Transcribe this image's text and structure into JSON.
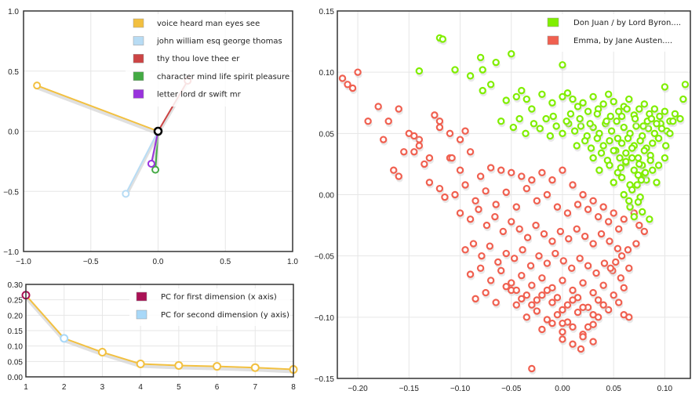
{
  "chart_data": [
    {
      "type": "line",
      "xlim": [
        -1.0,
        1.0
      ],
      "ylim": [
        -1.0,
        1.0
      ],
      "xticks": [
        "−1.0",
        "−0.5",
        "0.0",
        "0.5",
        "1.0"
      ],
      "yticks": [
        "1.0",
        "0.5",
        "0.0",
        "−0.5",
        "−1.0"
      ],
      "grid": true,
      "legend_position": "top-right",
      "series": [
        {
          "name": "voice heard man eyes see",
          "color": "#f2c040",
          "x": [
            0,
            -0.9
          ],
          "y": [
            0,
            0.38
          ]
        },
        {
          "name": "john william esq george thomas",
          "color": "#b8dcf4",
          "x": [
            0,
            -0.24
          ],
          "y": [
            0,
            -0.52
          ]
        },
        {
          "name": "thy thou love thee er",
          "color": "#cc4444",
          "x": [
            0,
            0.22
          ],
          "y": [
            0,
            0.42
          ]
        },
        {
          "name": "character mind life spirit pleasure",
          "color": "#44aa44",
          "x": [
            0,
            -0.02
          ],
          "y": [
            0,
            -0.32
          ]
        },
        {
          "name": "letter lord dr swift mr",
          "color": "#9933dd",
          "x": [
            0,
            -0.05
          ],
          "y": [
            0,
            -0.27
          ]
        }
      ]
    },
    {
      "type": "line",
      "x": [
        1,
        2,
        3,
        4,
        5,
        6,
        7,
        8
      ],
      "xlim": [
        1,
        8
      ],
      "ylim": [
        0,
        0.3
      ],
      "xticks": [
        "1",
        "2",
        "3",
        "4",
        "5",
        "6",
        "7",
        "8"
      ],
      "yticks": [
        "0.30",
        "0.25",
        "0.20",
        "0.15",
        "0.10",
        "0.05",
        "0.00"
      ],
      "grid": true,
      "legend_position": "top-right",
      "values": [
        0.265,
        0.125,
        0.08,
        0.042,
        0.037,
        0.034,
        0.03,
        0.024
      ],
      "line_color": "#f2c040",
      "highlights": [
        {
          "name": "PC for first dimension (x axis)",
          "index": 0,
          "color": "#aa1155"
        },
        {
          "name": "PC for second dimension (y axis)",
          "index": 1,
          "color": "#a8d8f8"
        }
      ]
    },
    {
      "type": "scatter",
      "xlim": [
        -0.22,
        0.125
      ],
      "ylim": [
        -0.15,
        0.15
      ],
      "xticks": [
        -0.2,
        -0.15,
        -0.1,
        -0.05,
        0.0,
        0.05,
        0.1
      ],
      "xtick_labels": [
        "−0.20",
        "−0.15",
        "−0.10",
        "−0.05",
        "0.00",
        "0.05",
        "0.10"
      ],
      "yticks": [
        0.15,
        0.1,
        0.05,
        0.0,
        -0.05,
        -0.1,
        -0.15
      ],
      "ytick_labels": [
        "0.15",
        "0.10",
        "0.05",
        "0.00",
        "−0.05",
        "−0.10",
        "−0.15"
      ],
      "grid": true,
      "legend_position": "top-right",
      "series": [
        {
          "name": "Don Juan / by Lord Byron....",
          "color": "#80ee00",
          "x": [
            -0.12,
            -0.117,
            -0.105,
            -0.08,
            -0.078,
            -0.065,
            -0.05,
            -0.0,
            0.1,
            0.12,
            -0.14,
            -0.09,
            -0.078,
            -0.07,
            -0.055,
            -0.045,
            -0.04,
            -0.035,
            -0.03,
            -0.02,
            -0.01,
            0.0,
            0.005,
            0.01,
            0.015,
            0.02,
            0.025,
            0.03,
            0.035,
            0.04,
            0.045,
            0.05,
            0.055,
            0.06,
            0.065,
            0.07,
            0.075,
            0.08,
            0.085,
            0.09,
            0.095,
            0.1,
            0.105,
            0.11,
            -0.06,
            -0.048,
            -0.042,
            -0.036,
            -0.028,
            -0.022,
            -0.016,
            -0.012,
            -0.006,
            0.0,
            0.006,
            0.012,
            0.018,
            0.024,
            0.03,
            0.036,
            0.042,
            0.048,
            0.054,
            0.06,
            0.066,
            0.072,
            0.078,
            0.084,
            0.09,
            0.096,
            0.102,
            0.014,
            0.022,
            0.028,
            0.034,
            0.04,
            0.046,
            0.052,
            0.058,
            0.064,
            0.07,
            0.076,
            0.082,
            0.088,
            0.094,
            0.03,
            0.038,
            0.044,
            0.05,
            0.056,
            0.062,
            0.068,
            0.074,
            0.08,
            0.086,
            0.036,
            0.046,
            0.054,
            0.062,
            0.07,
            0.078,
            0.086,
            0.05,
            0.058,
            0.066,
            0.074,
            0.082,
            0.06,
            0.068,
            0.076,
            0.066,
            0.074,
            0.07,
            0.078,
            0.085,
            0.092,
            0.1,
            0.057,
            0.062,
            0.068,
            0.075,
            0.08,
            0.088,
            0.094,
            0.101,
            0.105,
            0.108,
            0.115,
            0.118,
            -0.009,
            0.004,
            0.008,
            0.017,
            0.027,
            0.034,
            0.043,
            0.047,
            0.053,
            0.058,
            0.063,
            0.071,
            0.079,
            0.083,
            0.087,
            0.092,
            0.097,
            0.073,
            0.077,
            0.081,
            0.065
          ],
          "y": [
            0.128,
            0.127,
            0.102,
            0.112,
            0.102,
            0.108,
            0.115,
            0.106,
            0.088,
            0.09,
            0.101,
            0.097,
            0.085,
            0.09,
            0.077,
            0.08,
            0.085,
            0.078,
            0.07,
            0.082,
            0.075,
            0.08,
            0.083,
            0.078,
            0.072,
            0.075,
            0.068,
            0.08,
            0.07,
            0.074,
            0.082,
            0.076,
            0.068,
            0.072,
            0.078,
            0.065,
            0.07,
            0.074,
            0.066,
            0.07,
            0.064,
            0.068,
            0.06,
            0.066,
            0.06,
            0.055,
            0.062,
            0.05,
            0.058,
            0.054,
            0.062,
            0.048,
            0.056,
            0.05,
            0.058,
            0.052,
            0.056,
            0.048,
            0.055,
            0.05,
            0.058,
            0.052,
            0.046,
            0.055,
            0.05,
            0.056,
            0.048,
            0.054,
            0.05,
            0.058,
            0.052,
            0.04,
            0.044,
            0.038,
            0.046,
            0.04,
            0.044,
            0.036,
            0.042,
            0.046,
            0.04,
            0.044,
            0.038,
            0.042,
            0.046,
            0.03,
            0.034,
            0.028,
            0.036,
            0.03,
            0.034,
            0.038,
            0.03,
            0.036,
            0.032,
            0.02,
            0.024,
            0.018,
            0.026,
            0.02,
            0.024,
            0.028,
            0.01,
            0.014,
            0.008,
            0.016,
            0.012,
            0.0,
            0.004,
            -0.002,
            -0.01,
            -0.006,
            -0.018,
            -0.014,
            -0.02,
            0.01,
            0.03,
            0.022,
            0.027,
            0.03,
            0.025,
            0.017,
            0.02,
            0.024,
            0.04,
            0.05,
            0.06,
            0.062,
            0.078,
            0.064,
            0.06,
            0.066,
            0.062,
            0.058,
            0.066,
            0.06,
            0.064,
            0.06,
            0.064,
            0.07,
            0.062,
            0.056,
            0.06,
            0.062,
            0.058,
            0.054,
            0.008,
            0.012,
            0.018,
            -0.005
          ]
        },
        {
          "name": "Emma, by Jane Austen....",
          "color": "#f06050",
          "x": [
            -0.215,
            -0.21,
            -0.205,
            -0.2,
            -0.19,
            -0.18,
            -0.17,
            -0.16,
            -0.15,
            -0.14,
            -0.175,
            -0.165,
            -0.145,
            -0.125,
            -0.12,
            -0.135,
            -0.11,
            -0.1,
            -0.09,
            -0.08,
            -0.07,
            -0.06,
            -0.05,
            -0.04,
            -0.03,
            -0.02,
            -0.01,
            0.0,
            0.01,
            0.02,
            0.03,
            0.04,
            0.05,
            0.06,
            -0.13,
            -0.12,
            -0.115,
            -0.105,
            -0.095,
            -0.085,
            -0.075,
            -0.065,
            -0.055,
            -0.045,
            -0.035,
            -0.025,
            -0.015,
            -0.005,
            0.005,
            0.015,
            0.025,
            0.035,
            0.045,
            0.055,
            -0.1,
            -0.09,
            -0.082,
            -0.074,
            -0.066,
            -0.058,
            -0.05,
            -0.042,
            -0.034,
            -0.026,
            -0.018,
            -0.01,
            -0.002,
            0.006,
            0.014,
            0.022,
            0.03,
            0.038,
            0.046,
            0.054,
            -0.095,
            -0.087,
            -0.079,
            -0.071,
            -0.063,
            -0.055,
            -0.047,
            -0.039,
            -0.031,
            -0.023,
            -0.015,
            -0.007,
            0.001,
            0.009,
            0.017,
            0.025,
            0.033,
            0.041,
            0.049,
            0.057,
            0.065,
            -0.09,
            -0.08,
            -0.07,
            -0.06,
            -0.05,
            -0.04,
            -0.03,
            -0.02,
            -0.01,
            0.0,
            0.01,
            0.02,
            0.03,
            0.04,
            0.05,
            0.06,
            -0.085,
            -0.075,
            -0.065,
            -0.055,
            -0.045,
            -0.035,
            -0.025,
            -0.015,
            -0.005,
            0.005,
            0.015,
            0.025,
            0.035,
            0.045,
            0.055,
            -0.05,
            -0.04,
            -0.03,
            -0.02,
            -0.01,
            0.0,
            0.01,
            0.02,
            0.03,
            0.04,
            -0.035,
            -0.025,
            -0.015,
            -0.005,
            0.005,
            0.015,
            0.025,
            0.035,
            -0.02,
            -0.01,
            0.0,
            0.01,
            0.02,
            0.03,
            0.0,
            0.01,
            0.02,
            0.03,
            -0.03,
            0.018,
            0.0,
            -0.045,
            0.06,
            0.065,
            -0.14,
            -0.12,
            -0.108,
            -0.095,
            -0.13,
            -0.145,
            -0.16,
            -0.155,
            -0.11,
            -0.1,
            0.07,
            0.075,
            0.08,
            0.072,
            0.064,
            0.058,
            0.052,
            0.047
          ],
          "y": [
            0.095,
            0.09,
            0.087,
            0.1,
            0.06,
            0.072,
            0.06,
            0.07,
            0.05,
            0.045,
            0.045,
            0.02,
            0.035,
            0.065,
            0.06,
            0.025,
            0.03,
            0.02,
            0.035,
            0.015,
            0.022,
            0.02,
            0.018,
            0.015,
            0.012,
            0.018,
            0.012,
            0.02,
            0.008,
            0.0,
            -0.005,
            -0.01,
            -0.015,
            -0.02,
            0.01,
            0.005,
            -0.002,
            0.0,
            0.008,
            -0.005,
            0.003,
            -0.008,
            0.002,
            -0.01,
            0.005,
            -0.005,
            0.0,
            -0.01,
            -0.015,
            -0.008,
            -0.012,
            -0.018,
            -0.022,
            -0.028,
            -0.015,
            -0.02,
            -0.012,
            -0.025,
            -0.018,
            -0.03,
            -0.022,
            -0.028,
            -0.035,
            -0.025,
            -0.032,
            -0.038,
            -0.03,
            -0.036,
            -0.028,
            -0.034,
            -0.04,
            -0.032,
            -0.038,
            -0.044,
            -0.045,
            -0.04,
            -0.05,
            -0.042,
            -0.055,
            -0.048,
            -0.052,
            -0.045,
            -0.058,
            -0.05,
            -0.056,
            -0.048,
            -0.054,
            -0.06,
            -0.052,
            -0.058,
            -0.064,
            -0.056,
            -0.062,
            -0.068,
            -0.06,
            -0.065,
            -0.06,
            -0.07,
            -0.062,
            -0.072,
            -0.066,
            -0.074,
            -0.068,
            -0.076,
            -0.07,
            -0.078,
            -0.072,
            -0.08,
            -0.074,
            -0.082,
            -0.076,
            -0.085,
            -0.08,
            -0.088,
            -0.075,
            -0.09,
            -0.082,
            -0.086,
            -0.078,
            -0.084,
            -0.09,
            -0.084,
            -0.092,
            -0.086,
            -0.094,
            -0.088,
            -0.078,
            -0.085,
            -0.09,
            -0.082,
            -0.088,
            -0.094,
            -0.086,
            -0.092,
            -0.098,
            -0.09,
            -0.1,
            -0.095,
            -0.102,
            -0.098,
            -0.104,
            -0.096,
            -0.108,
            -0.1,
            -0.11,
            -0.105,
            -0.112,
            -0.108,
            -0.114,
            -0.106,
            -0.118,
            -0.122,
            -0.116,
            -0.12,
            -0.142,
            -0.126,
            -0.105,
            -0.078,
            -0.098,
            -0.1,
            0.04,
            0.055,
            0.03,
            0.052,
            0.03,
            0.048,
            0.015,
            0.035,
            0.05,
            0.045,
            -0.015,
            -0.025,
            -0.03,
            -0.04,
            -0.045,
            -0.05,
            -0.055,
            -0.06
          ]
        }
      ]
    }
  ]
}
